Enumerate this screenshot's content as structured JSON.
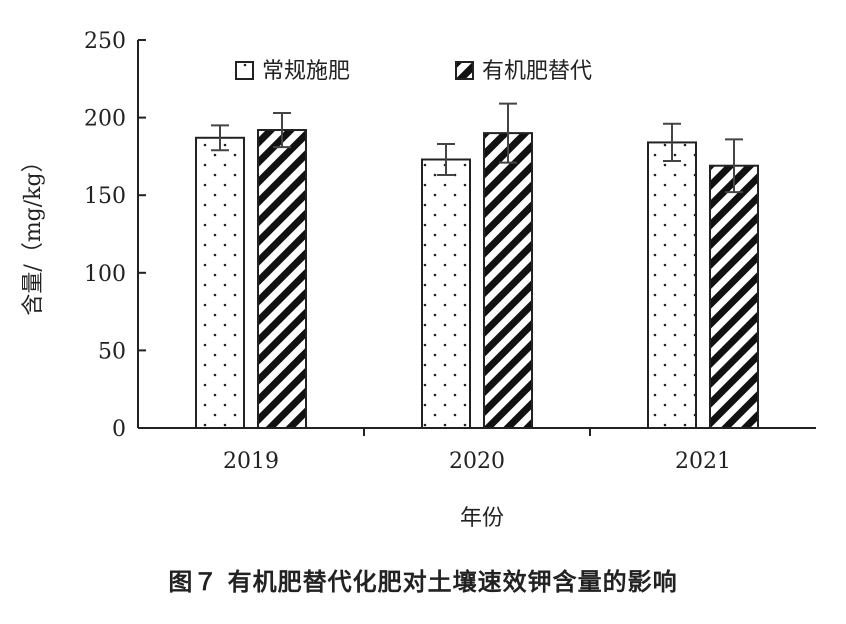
{
  "chart_data": {
    "type": "bar",
    "categories": [
      "2019",
      "2020",
      "2021"
    ],
    "series": [
      {
        "name": "常规施肥",
        "values": [
          187,
          173,
          184
        ],
        "errors": [
          8,
          10,
          12
        ],
        "pattern": "dots"
      },
      {
        "name": "有机肥替代",
        "values": [
          192,
          190,
          169
        ],
        "errors": [
          11,
          19,
          17
        ],
        "pattern": "hatch"
      }
    ],
    "xlabel": "年份",
    "ylabel": "含量/（mg/kg）",
    "ylim": [
      0,
      250
    ],
    "yticks": [
      0,
      50,
      100,
      150,
      200,
      250
    ],
    "legend_position": "top",
    "grid": false
  },
  "caption": "图７ 有机肥替代化肥对土壤速效钾含量的影响"
}
